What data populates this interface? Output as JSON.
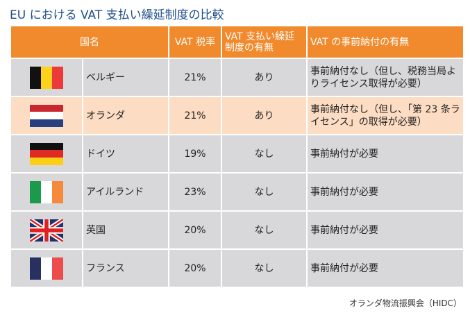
{
  "title": "EU における VAT 支払い繰延制度の比較",
  "headers": {
    "country": "国名",
    "rate": "VAT 税率",
    "deferral": "VAT 支払い繰延制度の有無",
    "prepay": "VAT の事前納付の有無"
  },
  "rows": [
    {
      "country": "ベルギー",
      "flag": "belgium-flag",
      "rate": "21%",
      "deferral": "あり",
      "prepay": "事前納付なし（但し、税務当局よりライセンス取得が必要）"
    },
    {
      "country": "オランダ",
      "flag": "netherlands-flag",
      "rate": "21%",
      "deferral": "あり",
      "prepay": "事前納付なし（但し、「第 23 条ライセンス」の取得が必要）"
    },
    {
      "country": "ドイツ",
      "flag": "germany-flag",
      "rate": "19%",
      "deferral": "なし",
      "prepay": "事前納付が必要"
    },
    {
      "country": "アイルランド",
      "flag": "ireland-flag",
      "rate": "23%",
      "deferral": "なし",
      "prepay": "事前納付が必要"
    },
    {
      "country": "英国",
      "flag": "uk-flag",
      "rate": "20%",
      "deferral": "なし",
      "prepay": "事前納付が必要"
    },
    {
      "country": "フランス",
      "flag": "france-flag",
      "rate": "20%",
      "deferral": "なし",
      "prepay": "事前納付が必要"
    }
  ],
  "source": "オランダ物流振興会（HIDC）",
  "colors": {
    "header": "#f08a2c",
    "row": "#d8d8da",
    "highlight": "#fcdcc2",
    "title": "#1f4e8c"
  }
}
